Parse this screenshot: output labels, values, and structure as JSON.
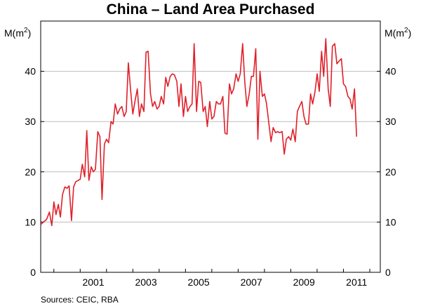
{
  "chart_data": {
    "type": "line",
    "title": "China – Land Area Purchased",
    "ylabel_left": {
      "base": "M(m",
      "sup": "2",
      "close": ")"
    },
    "ylabel_right": {
      "base": "M(m",
      "sup": "2",
      "close": ")"
    },
    "source": "Sources: CEIC, RBA",
    "ylim": [
      0,
      50
    ],
    "yticks": [
      0,
      10,
      20,
      30,
      40
    ],
    "xlim": [
      1999.5,
      2012.4
    ],
    "xtick_labels": [
      "2001",
      "2003",
      "2005",
      "2007",
      "2009",
      "2011"
    ],
    "grid": "horizontal",
    "line_color": "#e0202a",
    "series": [
      {
        "name": "Land area purchased",
        "points": [
          [
            1999.5,
            9.5
          ],
          [
            1999.6,
            10.0
          ],
          [
            1999.72,
            10.5
          ],
          [
            1999.83,
            12.0
          ],
          [
            1999.92,
            9.3
          ],
          [
            2000.0,
            14.0
          ],
          [
            2000.08,
            11.5
          ],
          [
            2000.17,
            13.5
          ],
          [
            2000.25,
            11.0
          ],
          [
            2000.33,
            15.5
          ],
          [
            2000.42,
            17.0
          ],
          [
            2000.5,
            16.7
          ],
          [
            2000.58,
            17.2
          ],
          [
            2000.67,
            10.3
          ],
          [
            2000.75,
            17.0
          ],
          [
            2000.83,
            18.0
          ],
          [
            2000.92,
            18.3
          ],
          [
            2001.0,
            18.5
          ],
          [
            2001.08,
            21.5
          ],
          [
            2001.17,
            19.0
          ],
          [
            2001.25,
            28.2
          ],
          [
            2001.33,
            18.3
          ],
          [
            2001.42,
            21.0
          ],
          [
            2001.5,
            20.0
          ],
          [
            2001.58,
            20.5
          ],
          [
            2001.67,
            28.0
          ],
          [
            2001.75,
            27.0
          ],
          [
            2001.83,
            14.5
          ],
          [
            2001.92,
            25.5
          ],
          [
            2002.0,
            26.5
          ],
          [
            2002.08,
            25.8
          ],
          [
            2002.17,
            30.0
          ],
          [
            2002.25,
            29.5
          ],
          [
            2002.33,
            33.5
          ],
          [
            2002.42,
            31.5
          ],
          [
            2002.5,
            32.5
          ],
          [
            2002.58,
            33.0
          ],
          [
            2002.67,
            31.0
          ],
          [
            2002.75,
            32.0
          ],
          [
            2002.83,
            41.7
          ],
          [
            2002.92,
            36.0
          ],
          [
            2003.0,
            31.5
          ],
          [
            2003.08,
            34.0
          ],
          [
            2003.17,
            36.5
          ],
          [
            2003.25,
            31.0
          ],
          [
            2003.33,
            33.5
          ],
          [
            2003.42,
            32.0
          ],
          [
            2003.5,
            43.8
          ],
          [
            2003.58,
            44.0
          ],
          [
            2003.67,
            35.5
          ],
          [
            2003.75,
            33.0
          ],
          [
            2003.83,
            34.0
          ],
          [
            2003.92,
            32.5
          ],
          [
            2004.0,
            33.0
          ],
          [
            2004.08,
            35.0
          ],
          [
            2004.17,
            33.5
          ],
          [
            2004.25,
            38.8
          ],
          [
            2004.33,
            37.0
          ],
          [
            2004.42,
            39.0
          ],
          [
            2004.5,
            39.5
          ],
          [
            2004.58,
            39.3
          ],
          [
            2004.67,
            38.0
          ],
          [
            2004.75,
            33.0
          ],
          [
            2004.83,
            37.5
          ],
          [
            2004.92,
            31.0
          ],
          [
            2005.0,
            35.0
          ],
          [
            2005.08,
            32.0
          ],
          [
            2005.17,
            33.0
          ],
          [
            2005.25,
            33.5
          ],
          [
            2005.33,
            45.5
          ],
          [
            2005.42,
            32.0
          ],
          [
            2005.5,
            38.0
          ],
          [
            2005.58,
            37.8
          ],
          [
            2005.67,
            32.0
          ],
          [
            2005.75,
            33.0
          ],
          [
            2005.83,
            29.0
          ],
          [
            2005.92,
            34.0
          ],
          [
            2006.0,
            30.5
          ],
          [
            2006.08,
            31.0
          ],
          [
            2006.17,
            34.0
          ],
          [
            2006.25,
            33.5
          ],
          [
            2006.33,
            33.5
          ],
          [
            2006.42,
            35.0
          ],
          [
            2006.5,
            27.7
          ],
          [
            2006.58,
            27.5
          ],
          [
            2006.67,
            37.5
          ],
          [
            2006.75,
            35.5
          ],
          [
            2006.83,
            36.5
          ],
          [
            2006.92,
            39.5
          ],
          [
            2007.0,
            38.0
          ],
          [
            2007.08,
            39.5
          ],
          [
            2007.17,
            45.5
          ],
          [
            2007.25,
            38.0
          ],
          [
            2007.33,
            33.0
          ],
          [
            2007.42,
            35.5
          ],
          [
            2007.5,
            39.0
          ],
          [
            2007.58,
            39.0
          ],
          [
            2007.67,
            44.5
          ],
          [
            2007.75,
            26.5
          ],
          [
            2007.83,
            40.0
          ],
          [
            2007.92,
            35.0
          ],
          [
            2008.0,
            35.5
          ],
          [
            2008.08,
            33.5
          ],
          [
            2008.17,
            29.5
          ],
          [
            2008.25,
            26.0
          ],
          [
            2008.33,
            28.8
          ],
          [
            2008.42,
            27.8
          ],
          [
            2008.5,
            28.0
          ],
          [
            2008.58,
            27.8
          ],
          [
            2008.67,
            28.0
          ],
          [
            2008.75,
            23.5
          ],
          [
            2008.83,
            26.5
          ],
          [
            2008.92,
            27.0
          ],
          [
            2009.0,
            26.3
          ],
          [
            2009.08,
            28.5
          ],
          [
            2009.17,
            26.0
          ],
          [
            2009.25,
            32.0
          ],
          [
            2009.33,
            33.0
          ],
          [
            2009.42,
            34.0
          ],
          [
            2009.5,
            31.0
          ],
          [
            2009.58,
            29.5
          ],
          [
            2009.67,
            29.5
          ],
          [
            2009.75,
            35.5
          ],
          [
            2009.83,
            33.5
          ],
          [
            2009.92,
            36.0
          ],
          [
            2010.0,
            39.5
          ],
          [
            2010.08,
            36.0
          ],
          [
            2010.17,
            44.0
          ],
          [
            2010.25,
            39.0
          ],
          [
            2010.33,
            46.5
          ],
          [
            2010.42,
            36.5
          ],
          [
            2010.5,
            33.0
          ],
          [
            2010.58,
            45.0
          ],
          [
            2010.67,
            45.5
          ],
          [
            2010.75,
            41.5
          ],
          [
            2010.83,
            42.0
          ],
          [
            2010.92,
            42.5
          ],
          [
            2011.0,
            37.5
          ],
          [
            2011.08,
            37.0
          ],
          [
            2011.17,
            35.0
          ],
          [
            2011.25,
            34.5
          ],
          [
            2011.33,
            32.5
          ],
          [
            2011.42,
            36.5
          ],
          [
            2011.5,
            27.0
          ]
        ]
      }
    ]
  }
}
